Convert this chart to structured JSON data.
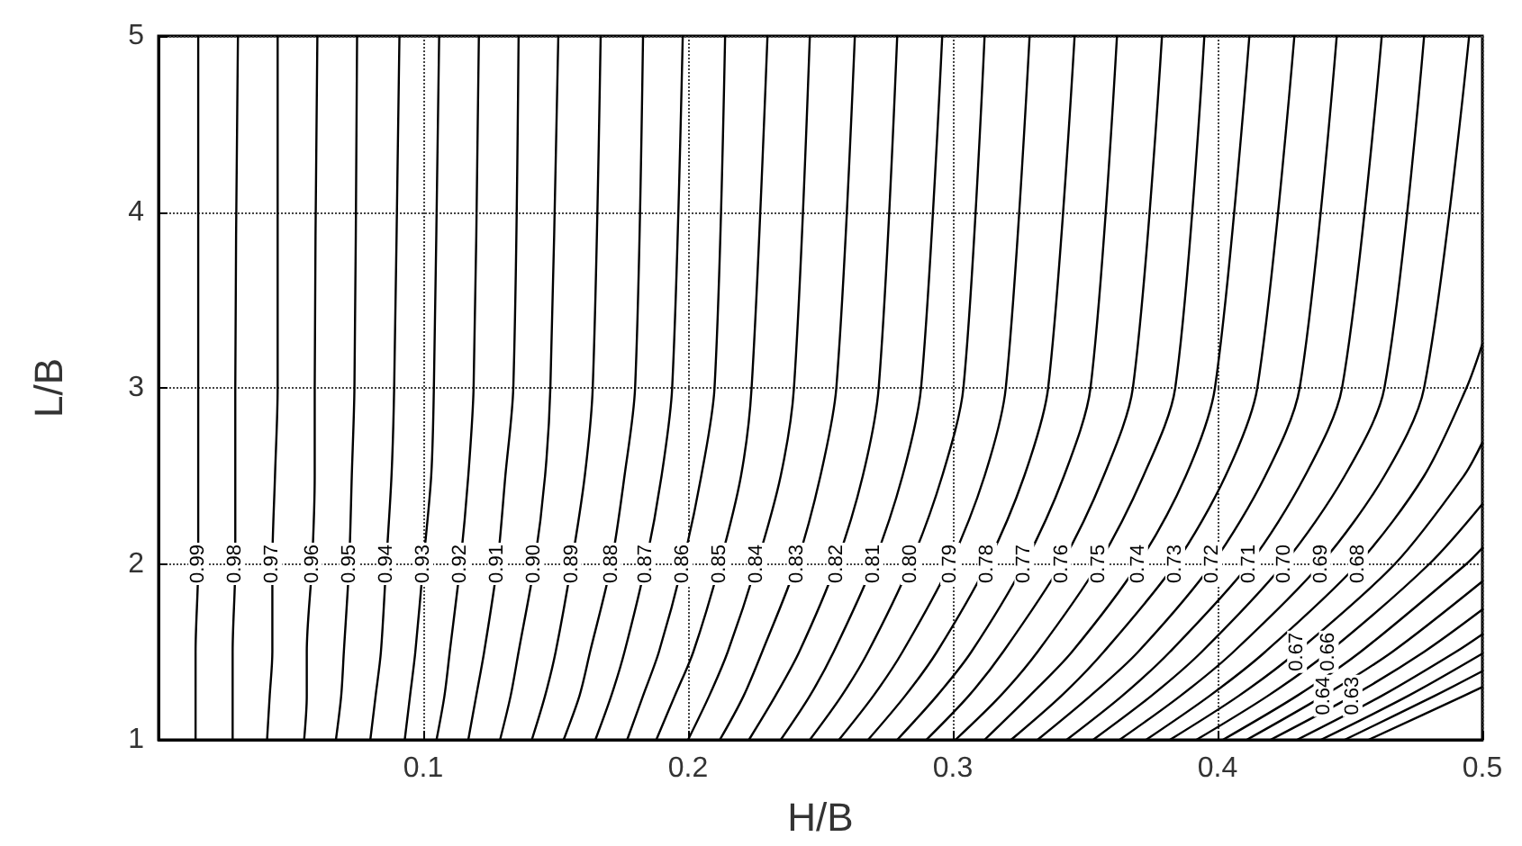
{
  "chart_data": {
    "type": "line",
    "xlabel": "H/B",
    "ylabel": "L/B",
    "xlim": [
      0,
      0.5
    ],
    "xticks": [
      0.1,
      0.2,
      0.3,
      0.4,
      0.5
    ],
    "ylim": [
      1,
      5
    ],
    "yticks": [
      1,
      2,
      3,
      4,
      5
    ],
    "grid": true,
    "marker": "none",
    "line_style": "solid",
    "series": [
      {
        "name": "0.99",
        "color": "#000000",
        "x": [
          0.015,
          0.015,
          0.015,
          0.015,
          0.014,
          0.014,
          0.014
        ],
        "values": [
          5,
          3,
          2.5,
          2,
          1.5,
          1.25,
          1
        ]
      },
      {
        "name": "0.98",
        "color": "#000000",
        "x": [
          0.03,
          0.029,
          0.029,
          0.029,
          0.028,
          0.028,
          0.028
        ],
        "values": [
          5,
          3,
          2.5,
          2,
          1.5,
          1.25,
          1
        ]
      },
      {
        "name": "0.97",
        "color": "#000000",
        "x": [
          0.045,
          0.045,
          0.044,
          0.043,
          0.043,
          0.042,
          0.041
        ],
        "values": [
          5,
          3,
          2.5,
          2,
          1.5,
          1.25,
          1
        ]
      },
      {
        "name": "0.96",
        "color": "#000000",
        "x": [
          0.06,
          0.059,
          0.059,
          0.058,
          0.056,
          0.056,
          0.055
        ],
        "values": [
          5,
          3,
          2.5,
          2,
          1.5,
          1.25,
          1
        ]
      },
      {
        "name": "0.95",
        "color": "#000000",
        "x": [
          0.075,
          0.074,
          0.073,
          0.072,
          0.07,
          0.069,
          0.067
        ],
        "values": [
          5,
          3,
          2.5,
          2,
          1.5,
          1.25,
          1
        ]
      },
      {
        "name": "0.94",
        "color": "#000000",
        "x": [
          0.091,
          0.089,
          0.088,
          0.086,
          0.084,
          0.082,
          0.08
        ],
        "values": [
          5,
          3,
          2.5,
          2,
          1.5,
          1.25,
          1
        ]
      },
      {
        "name": "0.93",
        "color": "#000000",
        "x": [
          0.106,
          0.104,
          0.103,
          0.1,
          0.097,
          0.095,
          0.093
        ],
        "values": [
          5,
          3,
          2.5,
          2,
          1.5,
          1.25,
          1
        ]
      },
      {
        "name": "0.92",
        "color": "#000000",
        "x": [
          0.121,
          0.119,
          0.117,
          0.114,
          0.11,
          0.108,
          0.105
        ],
        "values": [
          5,
          3,
          2.5,
          2,
          1.5,
          1.25,
          1
        ]
      },
      {
        "name": "0.91",
        "color": "#000000",
        "x": [
          0.136,
          0.134,
          0.131,
          0.128,
          0.123,
          0.12,
          0.117
        ],
        "values": [
          5,
          3,
          2.5,
          2,
          1.5,
          1.25,
          1
        ]
      },
      {
        "name": "0.90",
        "color": "#000000",
        "x": [
          0.151,
          0.148,
          0.146,
          0.142,
          0.136,
          0.133,
          0.129
        ],
        "values": [
          5,
          3,
          2.5,
          2,
          1.5,
          1.25,
          1
        ]
      },
      {
        "name": "0.89",
        "color": "#000000",
        "x": [
          0.167,
          0.164,
          0.161,
          0.156,
          0.15,
          0.146,
          0.141
        ],
        "values": [
          5,
          3,
          2.5,
          2,
          1.5,
          1.25,
          1
        ]
      },
      {
        "name": "0.88",
        "color": "#000000",
        "x": [
          0.183,
          0.18,
          0.176,
          0.171,
          0.163,
          0.159,
          0.153
        ],
        "values": [
          5,
          3,
          2.5,
          2,
          1.5,
          1.25,
          1
        ]
      },
      {
        "name": "0.87",
        "color": "#000000",
        "x": [
          0.198,
          0.194,
          0.19,
          0.184,
          0.176,
          0.171,
          0.165
        ],
        "values": [
          5,
          3,
          2.5,
          2,
          1.5,
          1.25,
          1
        ]
      },
      {
        "name": "0.86",
        "color": "#000000",
        "x": [
          0.214,
          0.21,
          0.205,
          0.198,
          0.189,
          0.183,
          0.177
        ],
        "values": [
          5,
          3,
          2.5,
          2,
          1.5,
          1.25,
          1
        ]
      },
      {
        "name": "0.85",
        "color": "#000000",
        "x": [
          0.23,
          0.224,
          0.22,
          0.212,
          0.202,
          0.195,
          0.188
        ],
        "values": [
          5,
          3,
          2.5,
          2,
          1.5,
          1.25,
          1
        ]
      },
      {
        "name": "0.84",
        "color": "#000000",
        "x": [
          0.246,
          0.24,
          0.235,
          0.226,
          0.215,
          0.208,
          0.2
        ],
        "values": [
          5,
          3,
          2.5,
          2,
          1.5,
          1.25,
          1
        ]
      },
      {
        "name": "0.83",
        "color": "#000000",
        "x": [
          0.263,
          0.256,
          0.25,
          0.241,
          0.228,
          0.221,
          0.212
        ],
        "values": [
          5,
          3,
          2.5,
          2,
          1.5,
          1.25,
          1
        ]
      },
      {
        "name": "0.82",
        "color": "#000000",
        "x": [
          0.279,
          0.272,
          0.266,
          0.256,
          0.242,
          0.233,
          0.223
        ],
        "values": [
          5,
          3,
          2.5,
          2,
          1.5,
          1.25,
          1
        ]
      },
      {
        "name": "0.81",
        "color": "#000000",
        "x": [
          0.296,
          0.288,
          0.281,
          0.27,
          0.255,
          0.246,
          0.235
        ],
        "values": [
          5,
          3,
          2.5,
          2,
          1.5,
          1.25,
          1
        ]
      },
      {
        "name": "0.80",
        "color": "#000000",
        "x": [
          0.312,
          0.304,
          0.296,
          0.284,
          0.268,
          0.258,
          0.246
        ],
        "values": [
          5,
          3,
          2.5,
          2,
          1.5,
          1.25,
          1
        ]
      },
      {
        "name": "0.79",
        "color": "#000000",
        "x": [
          0.329,
          0.32,
          0.312,
          0.299,
          0.281,
          0.27,
          0.257
        ],
        "values": [
          5,
          3,
          2.5,
          2,
          1.5,
          1.25,
          1
        ]
      },
      {
        "name": "0.78",
        "color": "#000000",
        "x": [
          0.346,
          0.336,
          0.327,
          0.313,
          0.294,
          0.282,
          0.268
        ],
        "values": [
          5,
          3,
          2.5,
          2,
          1.5,
          1.25,
          1
        ]
      },
      {
        "name": "0.77",
        "color": "#000000",
        "x": [
          0.362,
          0.352,
          0.342,
          0.327,
          0.307,
          0.294,
          0.279
        ],
        "values": [
          5,
          3,
          2.5,
          2,
          1.5,
          1.25,
          1
        ]
      },
      {
        "name": "0.76",
        "color": "#000000",
        "x": [
          0.379,
          0.368,
          0.357,
          0.341,
          0.319,
          0.306,
          0.29
        ],
        "values": [
          5,
          3,
          2.5,
          2,
          1.5,
          1.25,
          1
        ]
      },
      {
        "name": "0.75",
        "color": "#000000",
        "x": [
          0.395,
          0.384,
          0.372,
          0.355,
          0.332,
          0.318,
          0.301
        ],
        "values": [
          5,
          3,
          2.5,
          2,
          1.5,
          1.25,
          1
        ]
      },
      {
        "name": "0.74",
        "color": "#000000",
        "x": [
          0.412,
          0.399,
          0.388,
          0.37,
          0.345,
          0.329,
          0.312
        ],
        "values": [
          5,
          3,
          2.5,
          2,
          1.5,
          1.25,
          1
        ]
      },
      {
        "name": "0.73",
        "color": "#000000",
        "x": [
          0.429,
          0.415,
          0.403,
          0.384,
          0.357,
          0.341,
          0.322
        ],
        "values": [
          5,
          3,
          2.5,
          2,
          1.5,
          1.25,
          1
        ]
      },
      {
        "name": "0.72",
        "color": "#000000",
        "x": [
          0.445,
          0.431,
          0.418,
          0.398,
          0.37,
          0.352,
          0.332
        ],
        "values": [
          5,
          3,
          2.5,
          2,
          1.5,
          1.25,
          1
        ]
      },
      {
        "name": "0.71",
        "color": "#000000",
        "x": [
          0.462,
          0.447,
          0.433,
          0.412,
          0.382,
          0.364,
          0.343
        ],
        "values": [
          5,
          3,
          2.5,
          2,
          1.5,
          1.25,
          1
        ]
      },
      {
        "name": "0.70",
        "color": "#000000",
        "x": [
          0.478,
          0.463,
          0.448,
          0.425,
          0.394,
          0.375,
          0.353
        ],
        "values": [
          5,
          3,
          2.5,
          2,
          1.5,
          1.25,
          1
        ]
      },
      {
        "name": "0.69",
        "color": "#000000",
        "x": [
          0.495,
          0.478,
          0.463,
          0.439,
          0.406,
          0.386,
          0.363
        ],
        "values": [
          5,
          3,
          2.5,
          2,
          1.5,
          1.25,
          1
        ]
      },
      {
        "name": "0.68",
        "color": "#000000",
        "x": [
          0.5,
          0.494,
          0.478,
          0.453,
          0.418,
          0.397,
          0.373
        ],
        "values": [
          3.25,
          3,
          2.5,
          2,
          1.5,
          1.25,
          1
        ]
      },
      {
        "name": "0.67",
        "color": "#000000",
        "x": [
          0.5,
          0.493,
          0.467,
          0.43,
          0.408,
          0.382
        ],
        "values": [
          2.69,
          2.5,
          2,
          1.5,
          1.25,
          1
        ]
      },
      {
        "name": "0.66",
        "color": "#000000",
        "x": [
          0.5,
          0.48,
          0.442,
          0.419,
          0.392
        ],
        "values": [
          2.34,
          2,
          1.5,
          1.25,
          1
        ]
      },
      {
        "color": "#000000",
        "x": [
          0.5,
          0.494,
          0.454,
          0.43,
          0.402
        ],
        "values": [
          2.09,
          2,
          1.5,
          1.25,
          1
        ]
      },
      {
        "name": "0.64",
        "color": "#000000",
        "x": [
          0.5,
          0.466,
          0.44,
          0.411
        ],
        "values": [
          1.9,
          1.5,
          1.25,
          1
        ]
      },
      {
        "name": "0.63",
        "color": "#000000",
        "x": [
          0.5,
          0.478,
          0.451,
          0.42
        ],
        "values": [
          1.74,
          1.5,
          1.25,
          1
        ]
      },
      {
        "color": "#000000",
        "x": [
          0.5,
          0.49,
          0.462,
          0.43
        ],
        "values": [
          1.6,
          1.5,
          1.25,
          1
        ]
      },
      {
        "color": "#000000",
        "x": [
          0.5,
          0.472,
          0.439
        ],
        "values": [
          1.49,
          1.25,
          1
        ]
      },
      {
        "color": "#000000",
        "x": [
          0.5,
          0.482,
          0.448
        ],
        "values": [
          1.39,
          1.25,
          1
        ]
      },
      {
        "color": "#000000",
        "x": [
          0.5,
          0.493,
          0.457
        ],
        "values": [
          1.3,
          1.25,
          1
        ]
      }
    ]
  }
}
